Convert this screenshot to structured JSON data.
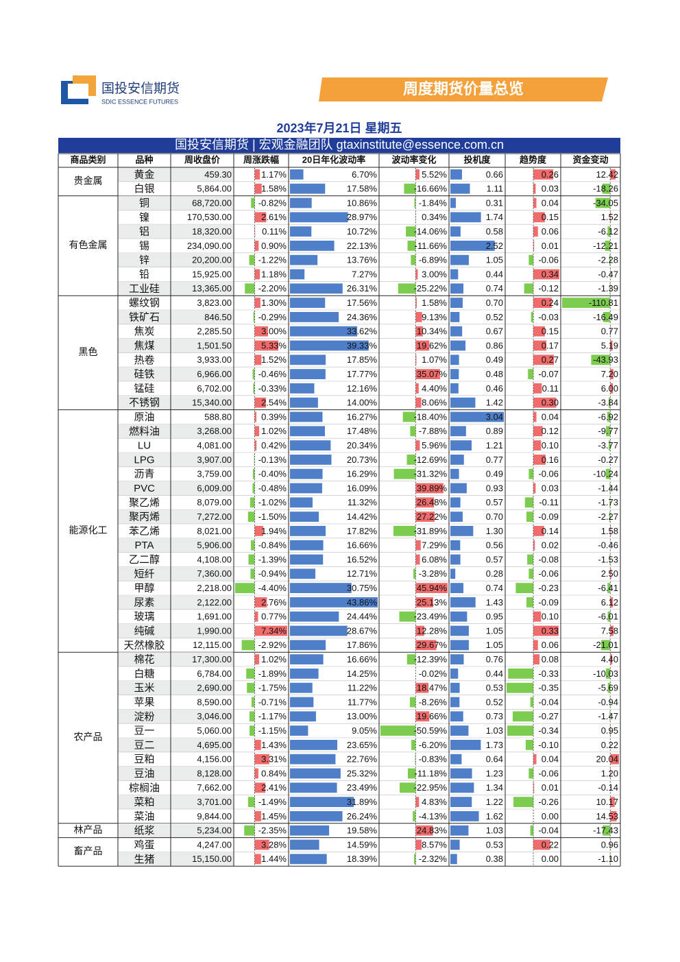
{
  "header": {
    "logo_cn": "国投安信期货",
    "logo_en": "SDIC ESSENCE FUTURES",
    "banner": "周度期货价量总览"
  },
  "date": "2023年7月21日 星期五",
  "subtitle": "国投安信期货 | 宏观金融团队 gtaxinstitute@essence.com.cn",
  "table": {
    "headers": [
      "商品类别",
      "品种",
      "周收盘价",
      "周涨跌幅",
      "20日年化波动率",
      "波动率变化",
      "投机度",
      "趋势度",
      "资金变动"
    ],
    "groups": [
      {
        "name": "贵金属",
        "rows": [
          [
            "黄金",
            "459.30",
            "1.17%",
            "6.70%",
            "5.52%",
            "0.66",
            "0.26",
            "12.42"
          ],
          [
            "白银",
            "5,864.00",
            "1.58%",
            "17.58%",
            "-16.66%",
            "1.11",
            "0.03",
            "-18.26"
          ]
        ]
      },
      {
        "name": "有色金属",
        "rows": [
          [
            "铜",
            "68,720.00",
            "-0.82%",
            "10.86%",
            "-1.84%",
            "0.31",
            "0.04",
            "-34.05"
          ],
          [
            "镍",
            "170,530.00",
            "2.61%",
            "28.97%",
            "0.34%",
            "1.74",
            "0.15",
            "1.52"
          ],
          [
            "铝",
            "18,320.00",
            "0.11%",
            "10.72%",
            "-14.06%",
            "0.58",
            "0.06",
            "-6.12"
          ],
          [
            "锡",
            "234,090.00",
            "0.90%",
            "22.13%",
            "-11.66%",
            "2.52",
            "0.01",
            "-12.21"
          ],
          [
            "锌",
            "20,200.00",
            "-1.22%",
            "13.76%",
            "-6.89%",
            "1.05",
            "-0.06",
            "-2.28"
          ],
          [
            "铅",
            "15,925.00",
            "1.18%",
            "7.27%",
            "3.00%",
            "0.44",
            "0.34",
            "-0.47"
          ],
          [
            "工业硅",
            "13,365.00",
            "-2.20%",
            "26.31%",
            "-25.22%",
            "0.74",
            "-0.12",
            "-1.39"
          ]
        ]
      },
      {
        "name": "黑色",
        "rows": [
          [
            "螺纹钢",
            "3,823.00",
            "1.30%",
            "17.56%",
            "1.58%",
            "0.70",
            "0.24",
            "-110.81"
          ],
          [
            "铁矿石",
            "846.50",
            "-0.29%",
            "24.36%",
            "9.13%",
            "0.52",
            "-0.03",
            "-16.49"
          ],
          [
            "焦炭",
            "2,285.50",
            "3.00%",
            "33.62%",
            "10.34%",
            "0.67",
            "0.15",
            "0.77"
          ],
          [
            "焦煤",
            "1,501.50",
            "5.33%",
            "39.33%",
            "19.62%",
            "0.86",
            "0.17",
            "5.19"
          ],
          [
            "热卷",
            "3,933.00",
            "1.52%",
            "17.85%",
            "1.07%",
            "0.49",
            "0.27",
            "-43.93"
          ],
          [
            "硅铁",
            "6,966.00",
            "-0.46%",
            "17.77%",
            "35.07%",
            "0.48",
            "-0.07",
            "7.20"
          ],
          [
            "锰硅",
            "6,702.00",
            "-0.33%",
            "12.16%",
            "4.40%",
            "0.46",
            "0.11",
            "6.00"
          ],
          [
            "不锈钢",
            "15,340.00",
            "2.54%",
            "14.00%",
            "8.06%",
            "1.42",
            "0.30",
            "-3.84"
          ]
        ]
      },
      {
        "name": "能源化工",
        "rows": [
          [
            "原油",
            "588.80",
            "0.39%",
            "16.27%",
            "-18.40%",
            "3.04",
            "0.04",
            "-6.92"
          ],
          [
            "燃料油",
            "3,268.00",
            "1.02%",
            "17.48%",
            "-7.88%",
            "0.89",
            "0.12",
            "-9.77"
          ],
          [
            "LU",
            "4,081.00",
            "0.42%",
            "20.34%",
            "5.96%",
            "1.21",
            "0.10",
            "-3.77"
          ],
          [
            "LPG",
            "3,907.00",
            "-0.13%",
            "20.73%",
            "-12.69%",
            "0.77",
            "0.16",
            "-0.27"
          ],
          [
            "沥青",
            "3,759.00",
            "-0.40%",
            "16.29%",
            "-31.32%",
            "0.49",
            "-0.06",
            "-10.24"
          ],
          [
            "PVC",
            "6,009.00",
            "-0.48%",
            "16.09%",
            "39.89%",
            "0.93",
            "0.03",
            "-1.44"
          ],
          [
            "聚乙烯",
            "8,079.00",
            "-1.02%",
            "11.32%",
            "26.48%",
            "0.57",
            "-0.11",
            "-1.73"
          ],
          [
            "聚丙烯",
            "7,272.00",
            "-1.50%",
            "14.42%",
            "27.22%",
            "0.70",
            "-0.09",
            "-2.27"
          ],
          [
            "苯乙烯",
            "8,021.00",
            "1.94%",
            "17.82%",
            "-31.89%",
            "1.30",
            "0.14",
            "1.58"
          ],
          [
            "PTA",
            "5,906.00",
            "-0.84%",
            "16.66%",
            "7.29%",
            "0.56",
            "0.02",
            "-0.46"
          ],
          [
            "乙二醇",
            "4,108.00",
            "-1.39%",
            "16.52%",
            "6.08%",
            "0.57",
            "-0.08",
            "-1.53"
          ],
          [
            "短纤",
            "7,360.00",
            "-0.94%",
            "12.71%",
            "-3.28%",
            "0.28",
            "-0.06",
            "2.50"
          ],
          [
            "甲醇",
            "2,218.00",
            "-4.40%",
            "30.75%",
            "45.94%",
            "0.74",
            "-0.23",
            "-6.41"
          ],
          [
            "尿素",
            "2,122.00",
            "2.76%",
            "43.86%",
            "25.13%",
            "1.43",
            "-0.09",
            "6.12"
          ],
          [
            "玻璃",
            "1,691.00",
            "0.77%",
            "24.44%",
            "-23.49%",
            "0.95",
            "0.10",
            "-6.01"
          ],
          [
            "纯碱",
            "1,990.00",
            "7.34%",
            "28.67%",
            "12.28%",
            "1.05",
            "0.33",
            "7.58"
          ],
          [
            "天然橡胶",
            "12,115.00",
            "-2.92%",
            "17.86%",
            "29.67%",
            "1.05",
            "0.06",
            "-21.01"
          ]
        ]
      },
      {
        "name": "农产品",
        "rows": [
          [
            "棉花",
            "17,300.00",
            "1.02%",
            "16.66%",
            "-12.39%",
            "0.76",
            "0.08",
            "4.40"
          ],
          [
            "白糖",
            "6,784.00",
            "-1.89%",
            "14.25%",
            "-0.02%",
            "0.44",
            "-0.33",
            "-10.03"
          ],
          [
            "玉米",
            "2,690.00",
            "-1.75%",
            "11.22%",
            "18.47%",
            "0.53",
            "-0.35",
            "-5.69"
          ],
          [
            "苹果",
            "8,590.00",
            "-0.71%",
            "11.77%",
            "-8.26%",
            "0.52",
            "-0.04",
            "-0.94"
          ],
          [
            "淀粉",
            "3,046.00",
            "-1.17%",
            "13.00%",
            "19.66%",
            "0.73",
            "-0.27",
            "-1.47"
          ],
          [
            "豆一",
            "5,060.00",
            "-1.15%",
            "9.05%",
            "-50.59%",
            "1.03",
            "-0.34",
            "0.95"
          ],
          [
            "豆二",
            "4,695.00",
            "1.43%",
            "23.65%",
            "-6.20%",
            "1.73",
            "-0.10",
            "0.22"
          ],
          [
            "豆粕",
            "4,156.00",
            "3.31%",
            "22.76%",
            "-0.83%",
            "0.64",
            "0.04",
            "20.04"
          ],
          [
            "豆油",
            "8,128.00",
            "0.84%",
            "25.32%",
            "-11.18%",
            "1.23",
            "-0.06",
            "1.20"
          ],
          [
            "棕榈油",
            "7,662.00",
            "2.41%",
            "23.49%",
            "-22.95%",
            "1.34",
            "0.01",
            "-0.14"
          ],
          [
            "菜粕",
            "3,701.00",
            "-1.49%",
            "31.89%",
            "4.83%",
            "1.22",
            "-0.26",
            "10.17"
          ],
          [
            "菜油",
            "9,844.00",
            "1.45%",
            "26.24%",
            "-4.13%",
            "1.62",
            "0.00",
            "14.53"
          ]
        ]
      },
      {
        "name": "林产品",
        "rows": [
          [
            "纸浆",
            "5,234.00",
            "-2.35%",
            "19.58%",
            "24.83%",
            "1.03",
            "-0.04",
            "-17.43"
          ]
        ]
      },
      {
        "name": "畜产品",
        "rows": [
          [
            "鸡蛋",
            "4,247.00",
            "3.28%",
            "14.59%",
            "8.57%",
            "0.53",
            "0.22",
            "0.96"
          ],
          [
            "生猪",
            "15,150.00",
            "1.44%",
            "18.39%",
            "-2.32%",
            "0.38",
            "0.00",
            "-1.10"
          ]
        ]
      }
    ]
  }
}
